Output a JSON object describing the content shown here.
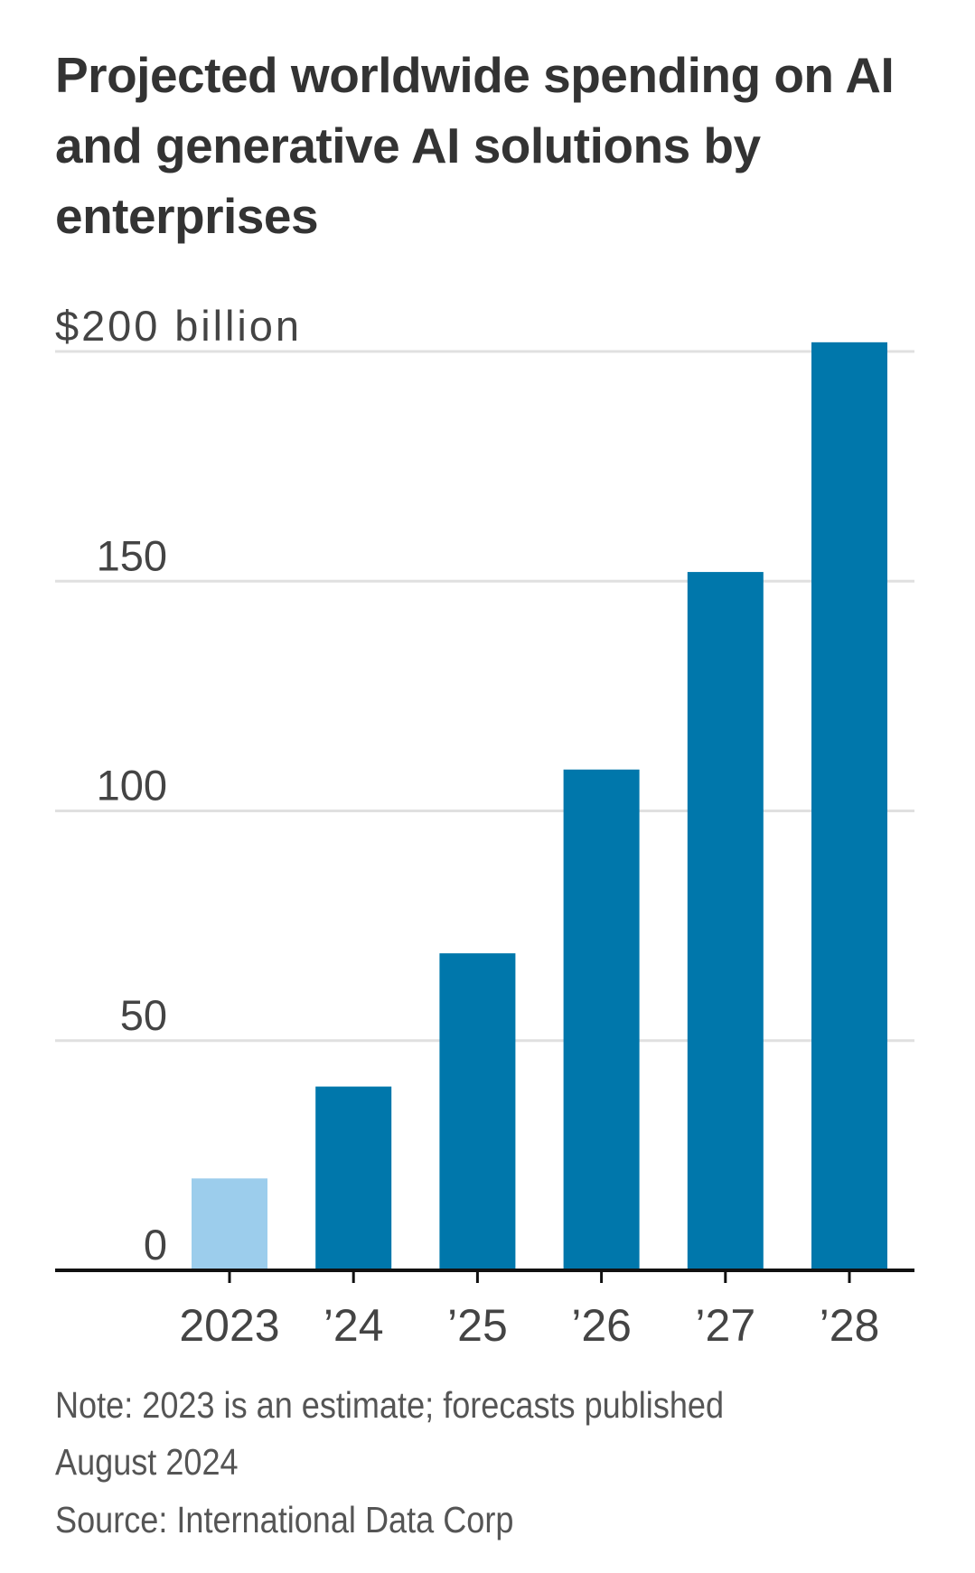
{
  "chart_data": {
    "type": "bar",
    "title": "Projected worldwide spending on AI and generative AI solutions by enterprises",
    "ylabel": "",
    "xlabel": "",
    "y_unit_label": "$200 billion",
    "categories": [
      "2023",
      "’24",
      "’25",
      "’26",
      "’27",
      "’28"
    ],
    "values": [
      20,
      40,
      69,
      109,
      152,
      202
    ],
    "bar_colors": [
      "#9ccdec",
      "#0077ab",
      "#0077ab",
      "#0077ab",
      "#0077ab",
      "#0077ab"
    ],
    "ylim": [
      0,
      200
    ],
    "yticks": [
      0,
      50,
      100,
      150,
      200
    ],
    "ytick_labels": [
      "0",
      "50",
      "100",
      "150",
      "$200 billion"
    ],
    "grid": true,
    "legend": "none"
  },
  "notes": {
    "note_line1": "Note: 2023 is an estimate; forecasts published",
    "note_line2": "August 2024",
    "source": "Source: International Data Corp"
  },
  "colors": {
    "gridline": "#e0e0e0",
    "axis": "#111111",
    "text": "#333333"
  }
}
